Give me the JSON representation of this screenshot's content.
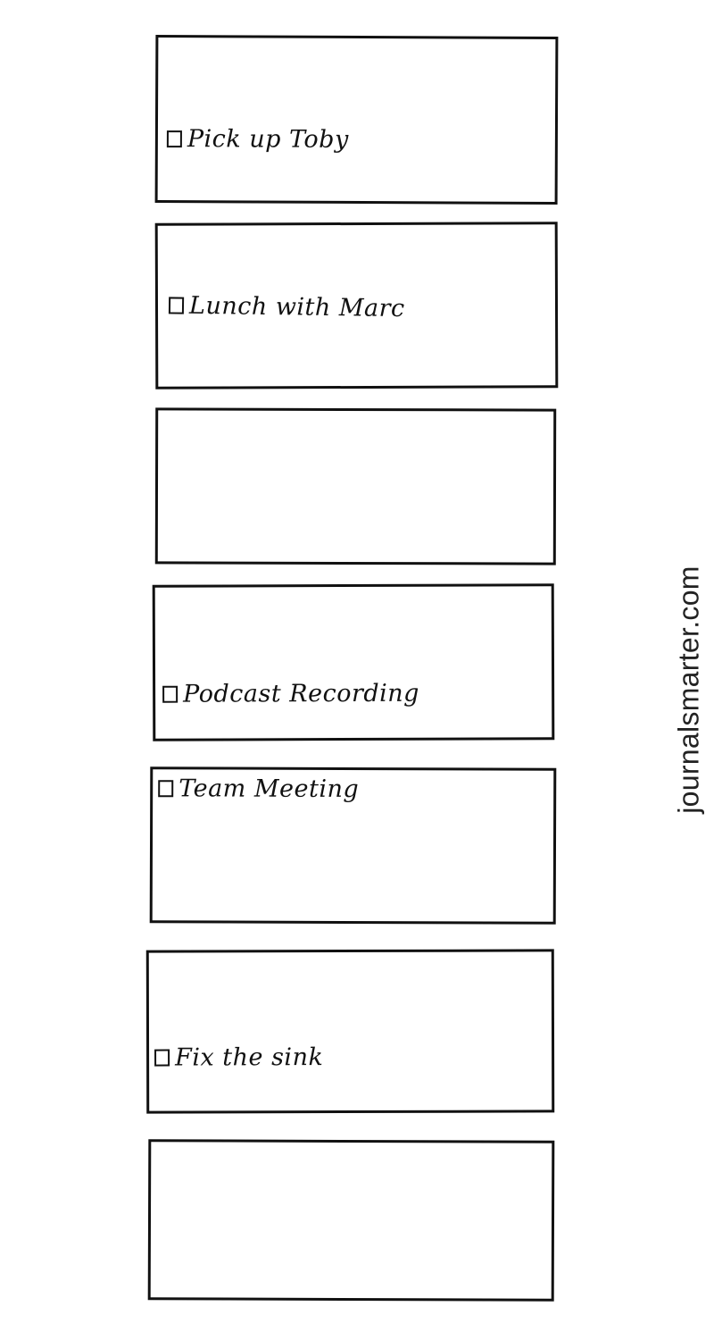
{
  "planner": {
    "blocks": [
      {
        "task": "Pick up Toby",
        "checked": false
      },
      {
        "task": "Lunch with Marc",
        "checked": false
      },
      {
        "task": "",
        "checked": false
      },
      {
        "task": "Podcast Recording",
        "checked": false
      },
      {
        "task": "Team Meeting",
        "checked": false
      },
      {
        "task": "Fix the sink",
        "checked": false
      },
      {
        "task": "",
        "checked": false
      }
    ]
  },
  "footer": {
    "website": "journalsmarter.com"
  },
  "colors": {
    "ink": "#111111",
    "paper": "#ffffff"
  }
}
